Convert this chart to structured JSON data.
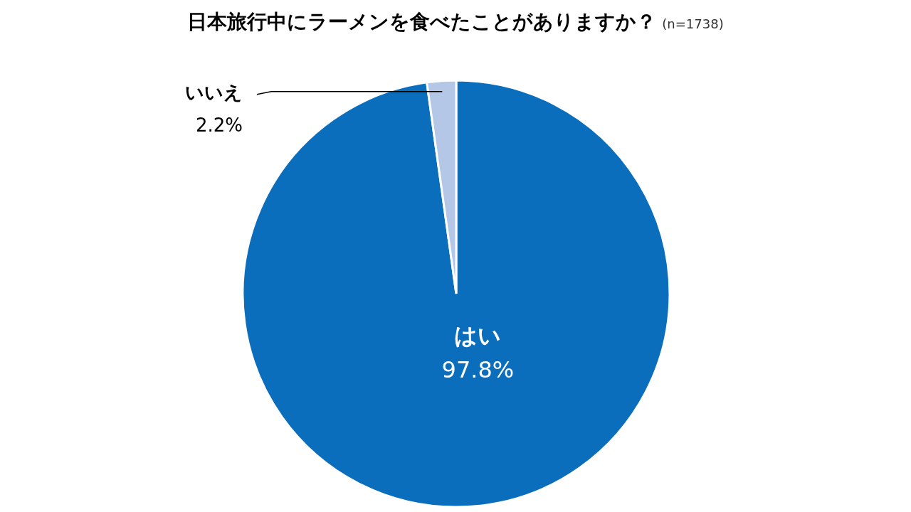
{
  "chart_data": {
    "type": "pie",
    "title": "日本旅行中にラーメンを食べたことがありますか？",
    "subtitle": "(n=1738)",
    "categories": [
      "はい",
      "いいえ"
    ],
    "values": [
      97.8,
      2.2
    ],
    "colors": [
      "#0a6ebd",
      "#b4c7e7"
    ],
    "value_labels": [
      "97.8%",
      "2.2%"
    ]
  }
}
